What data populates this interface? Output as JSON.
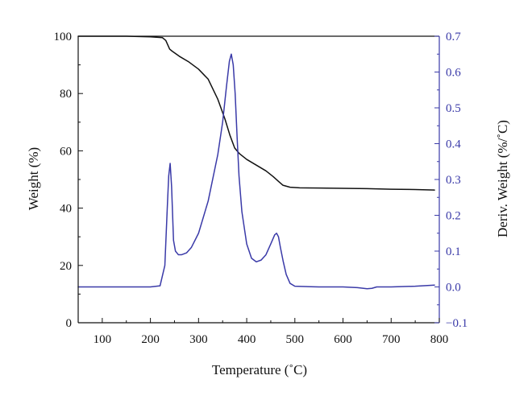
{
  "chart_data": {
    "type": "line",
    "title": "",
    "xlabel": "Temperature (˚C)",
    "ylabel": "Weight (%)",
    "y2label": "Deriv. Weight (%/˚C)",
    "xlim": [
      50,
      800
    ],
    "ylim": [
      0,
      100
    ],
    "y2lim": [
      -0.1,
      0.7
    ],
    "xticks": [
      "100",
      "200",
      "300",
      "400",
      "500",
      "600",
      "700",
      "800"
    ],
    "yticks": [
      "0",
      "20",
      "40",
      "60",
      "80",
      "100"
    ],
    "y2ticks": [
      "−0.1",
      "0.0",
      "0.1",
      "0.2",
      "0.3",
      "0.4",
      "0.5",
      "0.6",
      "0.7"
    ],
    "grid": false,
    "legend": "none",
    "series": [
      {
        "axis": "left",
        "color": "#111111",
        "x": [
          50,
          100,
          150,
          200,
          225,
          232,
          236,
          240,
          245,
          250,
          260,
          280,
          300,
          320,
          340,
          355,
          365,
          375,
          385,
          400,
          420,
          440,
          455,
          465,
          475,
          490,
          510,
          550,
          600,
          650,
          700,
          750,
          790
        ],
        "y": [
          100,
          100,
          100,
          99.8,
          99.5,
          98.5,
          97,
          95.5,
          94.8,
          94.2,
          93,
          91,
          88.5,
          85,
          78,
          71,
          65.5,
          61,
          59,
          57,
          55,
          53,
          51,
          49.5,
          48,
          47.3,
          47.1,
          47,
          46.9,
          46.8,
          46.6,
          46.5,
          46.3
        ]
      },
      {
        "axis": "right",
        "color": "#3a3aa8",
        "x": [
          50,
          100,
          150,
          200,
          220,
          230,
          235,
          238,
          241,
          244,
          248,
          252,
          258,
          265,
          275,
          285,
          300,
          320,
          340,
          350,
          358,
          364,
          368,
          372,
          376,
          380,
          384,
          390,
          400,
          410,
          420,
          430,
          440,
          450,
          458,
          462,
          466,
          470,
          476,
          482,
          490,
          500,
          550,
          600,
          630,
          650,
          660,
          670,
          700,
          750,
          790
        ],
        "y": [
          0.0,
          0.0,
          0.0,
          0.0,
          0.003,
          0.06,
          0.22,
          0.31,
          0.345,
          0.28,
          0.13,
          0.1,
          0.09,
          0.09,
          0.095,
          0.11,
          0.15,
          0.24,
          0.37,
          0.46,
          0.56,
          0.63,
          0.65,
          0.62,
          0.54,
          0.42,
          0.31,
          0.21,
          0.12,
          0.08,
          0.07,
          0.075,
          0.09,
          0.12,
          0.145,
          0.15,
          0.14,
          0.11,
          0.07,
          0.035,
          0.01,
          0.002,
          0.0,
          0.0,
          -0.002,
          -0.005,
          -0.004,
          0.0,
          0.0,
          0.002,
          0.005
        ]
      }
    ]
  }
}
